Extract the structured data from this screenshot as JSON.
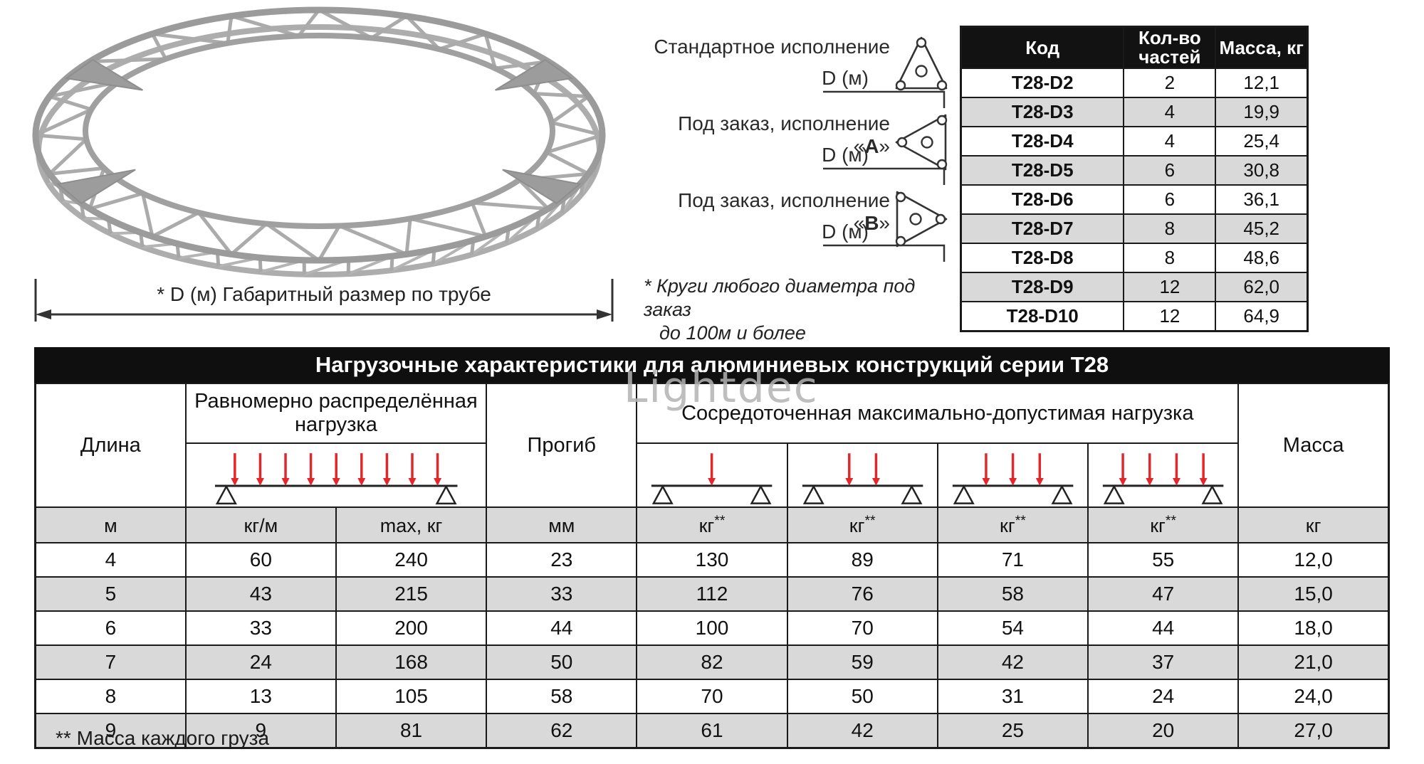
{
  "illustration": {
    "dimension_caption": "* D (м)  Габаритный размер по трубе"
  },
  "variants": {
    "items": [
      {
        "prefix": "Стандартное исполнение",
        "letter": "",
        "suffix": "",
        "dim_label": "D (м)"
      },
      {
        "prefix": "Под заказ, исполнение «",
        "letter": "А",
        "suffix": "»",
        "dim_label": "D (м)"
      },
      {
        "prefix": "Под заказ, исполнение «",
        "letter": "В",
        "suffix": "»",
        "dim_label": "D (м)"
      }
    ],
    "note_line1": "* Круги любого диаметра под заказ",
    "note_line2": "до 100м и более"
  },
  "parts_table": {
    "headers": [
      "Код",
      "Кол-во частей",
      "Масса, кг"
    ],
    "rows": [
      [
        "T28-D2",
        "2",
        "12,1"
      ],
      [
        "T28-D3",
        "4",
        "19,9"
      ],
      [
        "T28-D4",
        "4",
        "25,4"
      ],
      [
        "T28-D5",
        "6",
        "30,8"
      ],
      [
        "T28-D6",
        "6",
        "36,1"
      ],
      [
        "T28-D7",
        "8",
        "45,2"
      ],
      [
        "T28-D8",
        "8",
        "48,6"
      ],
      [
        "T28-D9",
        "12",
        "62,0"
      ],
      [
        "T28-D10",
        "12",
        "64,9"
      ]
    ]
  },
  "load_table": {
    "title": "Нагрузочные характеристики для алюминиевых конструкций серии Т28",
    "col_length": "Длина",
    "col_uniform": "Равномерно распределённая нагрузка",
    "col_deflection": "Прогиб",
    "col_concentrated": "Сосредоточенная максимально-допустимая нагрузка",
    "col_mass": "Масса",
    "units": [
      {
        "base": "м",
        "sup": ""
      },
      {
        "base": "кг/м",
        "sup": ""
      },
      {
        "base": "max, кг",
        "sup": ""
      },
      {
        "base": "мм",
        "sup": ""
      },
      {
        "base": "кг",
        "sup": "**"
      },
      {
        "base": "кг",
        "sup": "**"
      },
      {
        "base": "кг",
        "sup": "**"
      },
      {
        "base": "кг",
        "sup": "**"
      },
      {
        "base": "кг",
        "sup": ""
      }
    ],
    "rows": [
      [
        "4",
        "60",
        "240",
        "23",
        "130",
        "89",
        "71",
        "55",
        "12,0"
      ],
      [
        "5",
        "43",
        "215",
        "33",
        "112",
        "76",
        "58",
        "47",
        "15,0"
      ],
      [
        "6",
        "33",
        "200",
        "44",
        "100",
        "70",
        "54",
        "44",
        "18,0"
      ],
      [
        "7",
        "24",
        "168",
        "50",
        "82",
        "59",
        "42",
        "37",
        "21,0"
      ],
      [
        "8",
        "13",
        "105",
        "58",
        "70",
        "50",
        "31",
        "24",
        "24,0"
      ],
      [
        "9",
        "9",
        "81",
        "62",
        "61",
        "42",
        "25",
        "20",
        "27,0"
      ]
    ],
    "footnote": "** Масса каждого груза"
  },
  "diagrams": {
    "uniform_arrows": 9,
    "concentrated_arrows": [
      1,
      2,
      3,
      4
    ]
  },
  "watermark": {
    "text": "Lightdec"
  },
  "colors": {
    "accent_red": "#e3262a",
    "row_gray": "#d9d9d9",
    "header_black": "#0f0f0f"
  }
}
